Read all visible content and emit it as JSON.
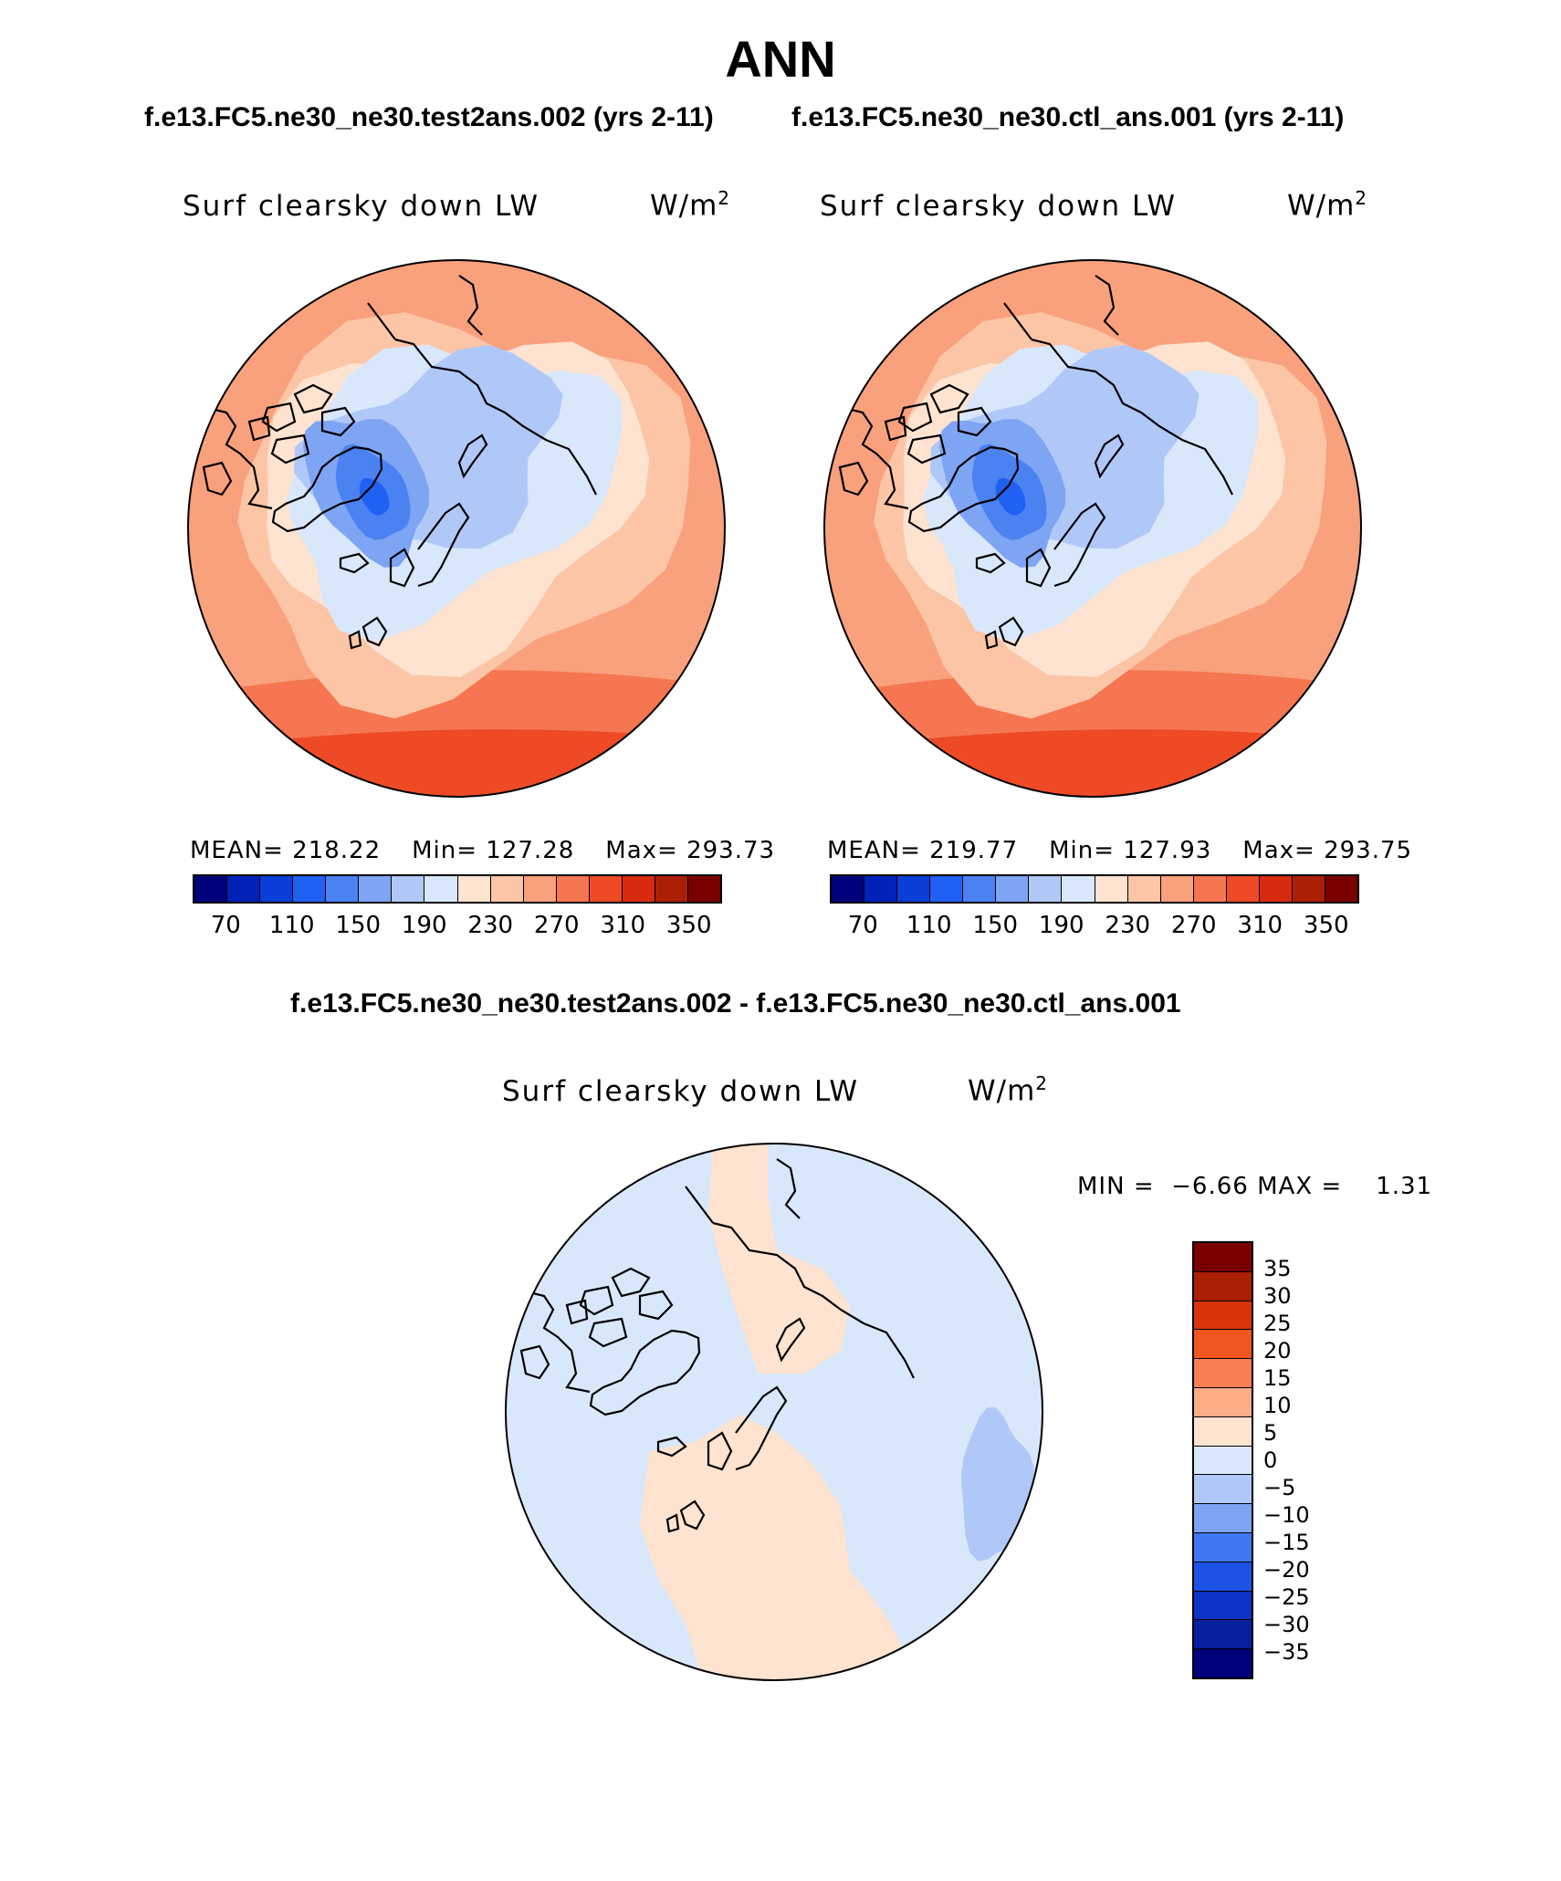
{
  "title": "ANN",
  "test_case": "f.e13.FC5.ne30_ne30.test2ans.002 (yrs 2-11)",
  "ctl_case": "f.e13.FC5.ne30_ne30.ctl_ans.001 (yrs 2-11)",
  "diff_title": "f.e13.FC5.ne30_ne30.test2ans.002 - f.e13.FC5.ne30_ne30.ctl_ans.001",
  "variable": "Surf clearsky down LW",
  "units_base": "W/m",
  "units_exp": "2",
  "panels": [
    {
      "id": "test",
      "mean_label": "MEAN= 218.22",
      "min_label": "Min= 127.28",
      "max_label": "Max= 293.73"
    },
    {
      "id": "ctl",
      "mean_label": "MEAN= 219.77",
      "min_label": "Min= 127.93",
      "max_label": "Max= 293.75"
    }
  ],
  "diff_stats": "MIN =  −6.66 MAX =    1.31",
  "chart_data": [
    {
      "type": "polar-contour-map",
      "title": "Surf clearsky down LW",
      "units": "W/m2",
      "case": "f.e13.FC5.ne30_ne30.test2ans.002 (yrs 2-11)",
      "mean": 218.22,
      "min": 127.28,
      "max": 293.73,
      "contour_levels": [
        70,
        90,
        110,
        130,
        150,
        170,
        190,
        210,
        230,
        250,
        270,
        290,
        310,
        330,
        350
      ],
      "tick_labels": [
        "70",
        "110",
        "150",
        "190",
        "230",
        "270",
        "310",
        "350"
      ]
    },
    {
      "type": "polar-contour-map",
      "title": "Surf clearsky down LW",
      "units": "W/m2",
      "case": "f.e13.FC5.ne30_ne30.ctl_ans.001 (yrs 2-11)",
      "mean": 219.77,
      "min": 127.93,
      "max": 293.75,
      "contour_levels": [
        70,
        90,
        110,
        130,
        150,
        170,
        190,
        210,
        230,
        250,
        270,
        290,
        310,
        330,
        350
      ],
      "tick_labels": [
        "70",
        "110",
        "150",
        "190",
        "230",
        "270",
        "310",
        "350"
      ]
    },
    {
      "type": "polar-contour-map",
      "title": "Surf clearsky down LW",
      "units": "W/m2",
      "case": "difference",
      "min": -6.66,
      "max": 1.31,
      "contour_levels": [
        35,
        30,
        25,
        20,
        15,
        10,
        5,
        0,
        -5,
        -10,
        -15,
        -20,
        -25,
        -30,
        -35
      ],
      "tick_labels": [
        "35",
        "30",
        "25",
        "20",
        "15",
        "10",
        "5",
        "0",
        "−5",
        "−10",
        "−15",
        "−20",
        "−25",
        "−30",
        "−35"
      ]
    }
  ],
  "abs_colors": [
    "#00007a",
    "#0022b8",
    "#0a3fd9",
    "#2060f2",
    "#4a82f2",
    "#7ea4f4",
    "#b0c8f7",
    "#d9e7fb",
    "#fde3d0",
    "#fcc5a6",
    "#f9a07c",
    "#f57650",
    "#ee4a26",
    "#d82a0f",
    "#ab1f05",
    "#7a0000"
  ],
  "diff_colors": [
    "#7a0000",
    "#ab1f05",
    "#d8350c",
    "#f0561f",
    "#f77f52",
    "#fbad86",
    "#fde3d0",
    "#d9e7fb",
    "#b0c8f7",
    "#7ea4f4",
    "#3f78f0",
    "#1c52e6",
    "#0c33c6",
    "#07209e",
    "#00007a"
  ]
}
